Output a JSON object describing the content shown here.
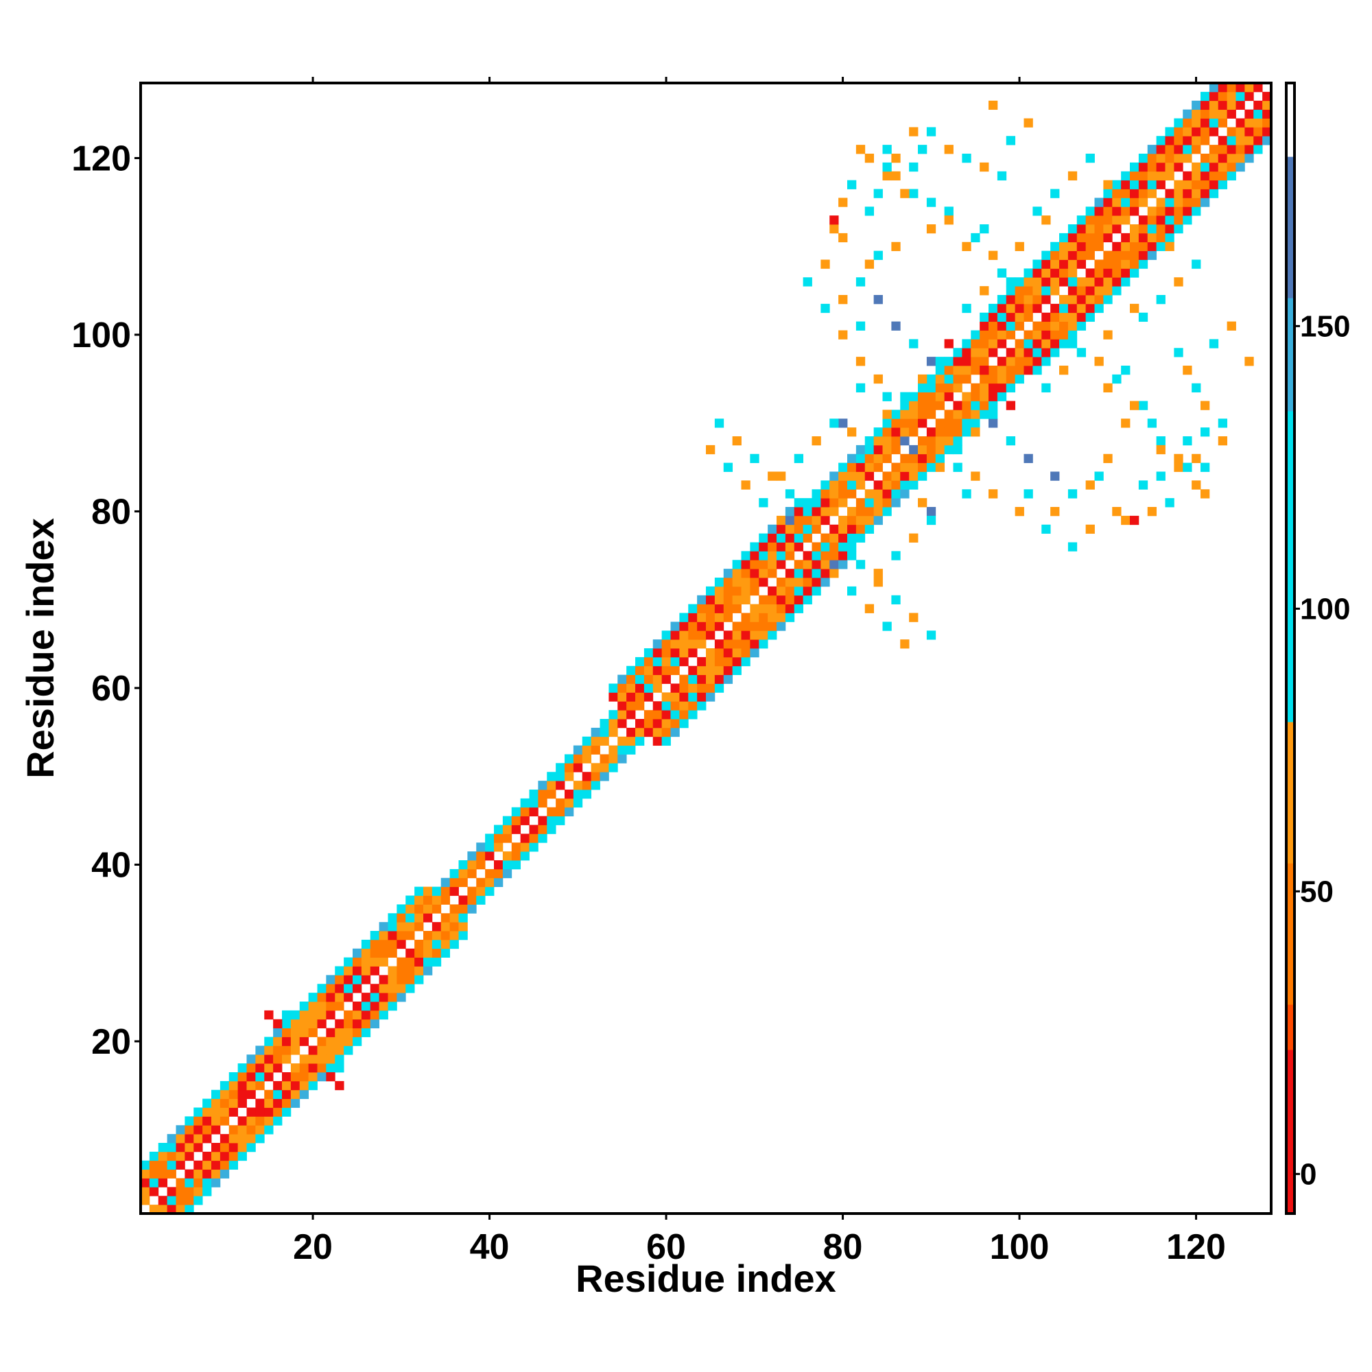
{
  "chart_data": {
    "type": "heatmap",
    "title": "",
    "xlabel": "Residue index",
    "ylabel": "Residue index",
    "xlim": [
      1,
      128
    ],
    "ylim": [
      1,
      128
    ],
    "x_ticks": [
      20,
      40,
      60,
      80,
      100,
      120
    ],
    "y_ticks": [
      20,
      40,
      60,
      80,
      100,
      120
    ],
    "grid": false,
    "colorbar": {
      "ticks": [
        0,
        50,
        100,
        150
      ],
      "range": [
        -7,
        193
      ],
      "colors": {
        "red": "#ee1111",
        "red_orange": "#ff4a00",
        "orange": "#ff7a00",
        "amber": "#ff9a10",
        "cyan": "#00e0ee",
        "sky": "#3aaedc",
        "steel": "#4f78b8"
      },
      "bands": [
        {
          "from": -7,
          "to": 22,
          "color": "red"
        },
        {
          "from": 22,
          "to": 30,
          "color": "red_orange"
        },
        {
          "from": 30,
          "to": 55,
          "color": "orange"
        },
        {
          "from": 55,
          "to": 80,
          "color": "amber"
        },
        {
          "from": 80,
          "to": 135,
          "color": "cyan"
        },
        {
          "from": 135,
          "to": 155,
          "color": "sky"
        },
        {
          "from": 155,
          "to": 180,
          "color": "steel"
        },
        {
          "from": 180,
          "to": 193,
          "color": "white"
        }
      ]
    },
    "band_rule": {
      "description": "symmetric contact map; along the diagonal cells with |i-j| <= width are filled, alternating orange / red (checker) with cyan edges",
      "segments": [
        {
          "from": 1,
          "to": 35,
          "width": 5
        },
        {
          "from": 35,
          "to": 56,
          "width": 3
        },
        {
          "from": 56,
          "to": 78,
          "width": 6
        },
        {
          "from": 78,
          "to": 98,
          "width": 5
        },
        {
          "from": 98,
          "to": 128,
          "width": 6
        }
      ]
    },
    "off_diagonal_contacts": [
      [
        88,
        87,
        170
      ],
      [
        88,
        84,
        60
      ],
      [
        90,
        80,
        170
      ],
      [
        93,
        85,
        110
      ],
      [
        94,
        82,
        110
      ],
      [
        95,
        84,
        60
      ],
      [
        97,
        82,
        60
      ],
      [
        100,
        80,
        60
      ],
      [
        101,
        82,
        110
      ],
      [
        103,
        78,
        110
      ],
      [
        104,
        80,
        60
      ],
      [
        106,
        76,
        110
      ],
      [
        108,
        83,
        60
      ],
      [
        109,
        84,
        110
      ],
      [
        110,
        86,
        60
      ],
      [
        111,
        80,
        20
      ],
      [
        112,
        79,
        60
      ],
      [
        114,
        83,
        110
      ],
      [
        115,
        80,
        60
      ],
      [
        116,
        84,
        110
      ],
      [
        118,
        85,
        60
      ],
      [
        119,
        88,
        110
      ],
      [
        120,
        86,
        60
      ],
      [
        121,
        89,
        110
      ],
      [
        123,
        88,
        60
      ],
      [
        118,
        98,
        110
      ],
      [
        119,
        96,
        60
      ],
      [
        120,
        94,
        110
      ],
      [
        121,
        92,
        60
      ],
      [
        123,
        90,
        110
      ],
      [
        126,
        97,
        60
      ],
      [
        122,
        99,
        110
      ],
      [
        124,
        101,
        60
      ],
      [
        114,
        102,
        110
      ],
      [
        113,
        103,
        60
      ],
      [
        116,
        104,
        110
      ],
      [
        118,
        106,
        60
      ],
      [
        120,
        108,
        110
      ],
      [
        117,
        110,
        60
      ],
      [
        115,
        112,
        110
      ],
      [
        104,
        108,
        60
      ],
      [
        106,
        106,
        110
      ],
      [
        101,
        104,
        60
      ],
      [
        99,
        106,
        110
      ],
      [
        100,
        110,
        60
      ],
      [
        96,
        112,
        110
      ],
      [
        94,
        110,
        60
      ],
      [
        92,
        114,
        110
      ],
      [
        90,
        112,
        60
      ],
      [
        88,
        116,
        110
      ],
      [
        86,
        118,
        60
      ],
      [
        85,
        121,
        110
      ],
      [
        83,
        120,
        60
      ],
      [
        81,
        117,
        110
      ],
      [
        80,
        111,
        60
      ],
      [
        79,
        113,
        20
      ],
      [
        78,
        108,
        60
      ],
      [
        82,
        106,
        110
      ],
      [
        84,
        104,
        160
      ],
      [
        86,
        101,
        160
      ],
      [
        88,
        99,
        110
      ],
      [
        90,
        97,
        160
      ],
      [
        92,
        95,
        110
      ],
      [
        94,
        93,
        60
      ],
      [
        96,
        91,
        110
      ],
      [
        73,
        84,
        60
      ],
      [
        75,
        86,
        110
      ],
      [
        77,
        88,
        60
      ],
      [
        79,
        90,
        110
      ],
      [
        81,
        89,
        60
      ],
      [
        82,
        86,
        110
      ],
      [
        85,
        91,
        60
      ],
      [
        87,
        93,
        110
      ],
      [
        89,
        95,
        60
      ],
      [
        91,
        97,
        110
      ],
      [
        94,
        103,
        110
      ],
      [
        96,
        105,
        60
      ],
      [
        98,
        107,
        110
      ],
      [
        97,
        109,
        60
      ],
      [
        95,
        111,
        110
      ],
      [
        92,
        113,
        60
      ],
      [
        90,
        115,
        110
      ],
      [
        87,
        116,
        60
      ],
      [
        85,
        119,
        110
      ],
      [
        82,
        121,
        60
      ],
      [
        82,
        74,
        110
      ],
      [
        84,
        72,
        60
      ],
      [
        86,
        70,
        110
      ],
      [
        88,
        68,
        60
      ],
      [
        90,
        66,
        110
      ],
      [
        87,
        65,
        60
      ],
      [
        85,
        67,
        110
      ],
      [
        83,
        69,
        60
      ],
      [
        81,
        71,
        110
      ],
      [
        79,
        73,
        60
      ],
      [
        97,
        93,
        20
      ],
      [
        98,
        94,
        10
      ],
      [
        96,
        96,
        20
      ],
      [
        95,
        98,
        60
      ],
      [
        99,
        92,
        20
      ],
      [
        73,
        77,
        110
      ],
      [
        74,
        79,
        160
      ],
      [
        76,
        78,
        110
      ],
      [
        72,
        75,
        60
      ],
      [
        70,
        76,
        110
      ],
      [
        22,
        16,
        20
      ],
      [
        23,
        17,
        110
      ],
      [
        18,
        21,
        60
      ],
      [
        15,
        23,
        20
      ],
      [
        31,
        34,
        110
      ],
      [
        12,
        14,
        20
      ]
    ]
  }
}
